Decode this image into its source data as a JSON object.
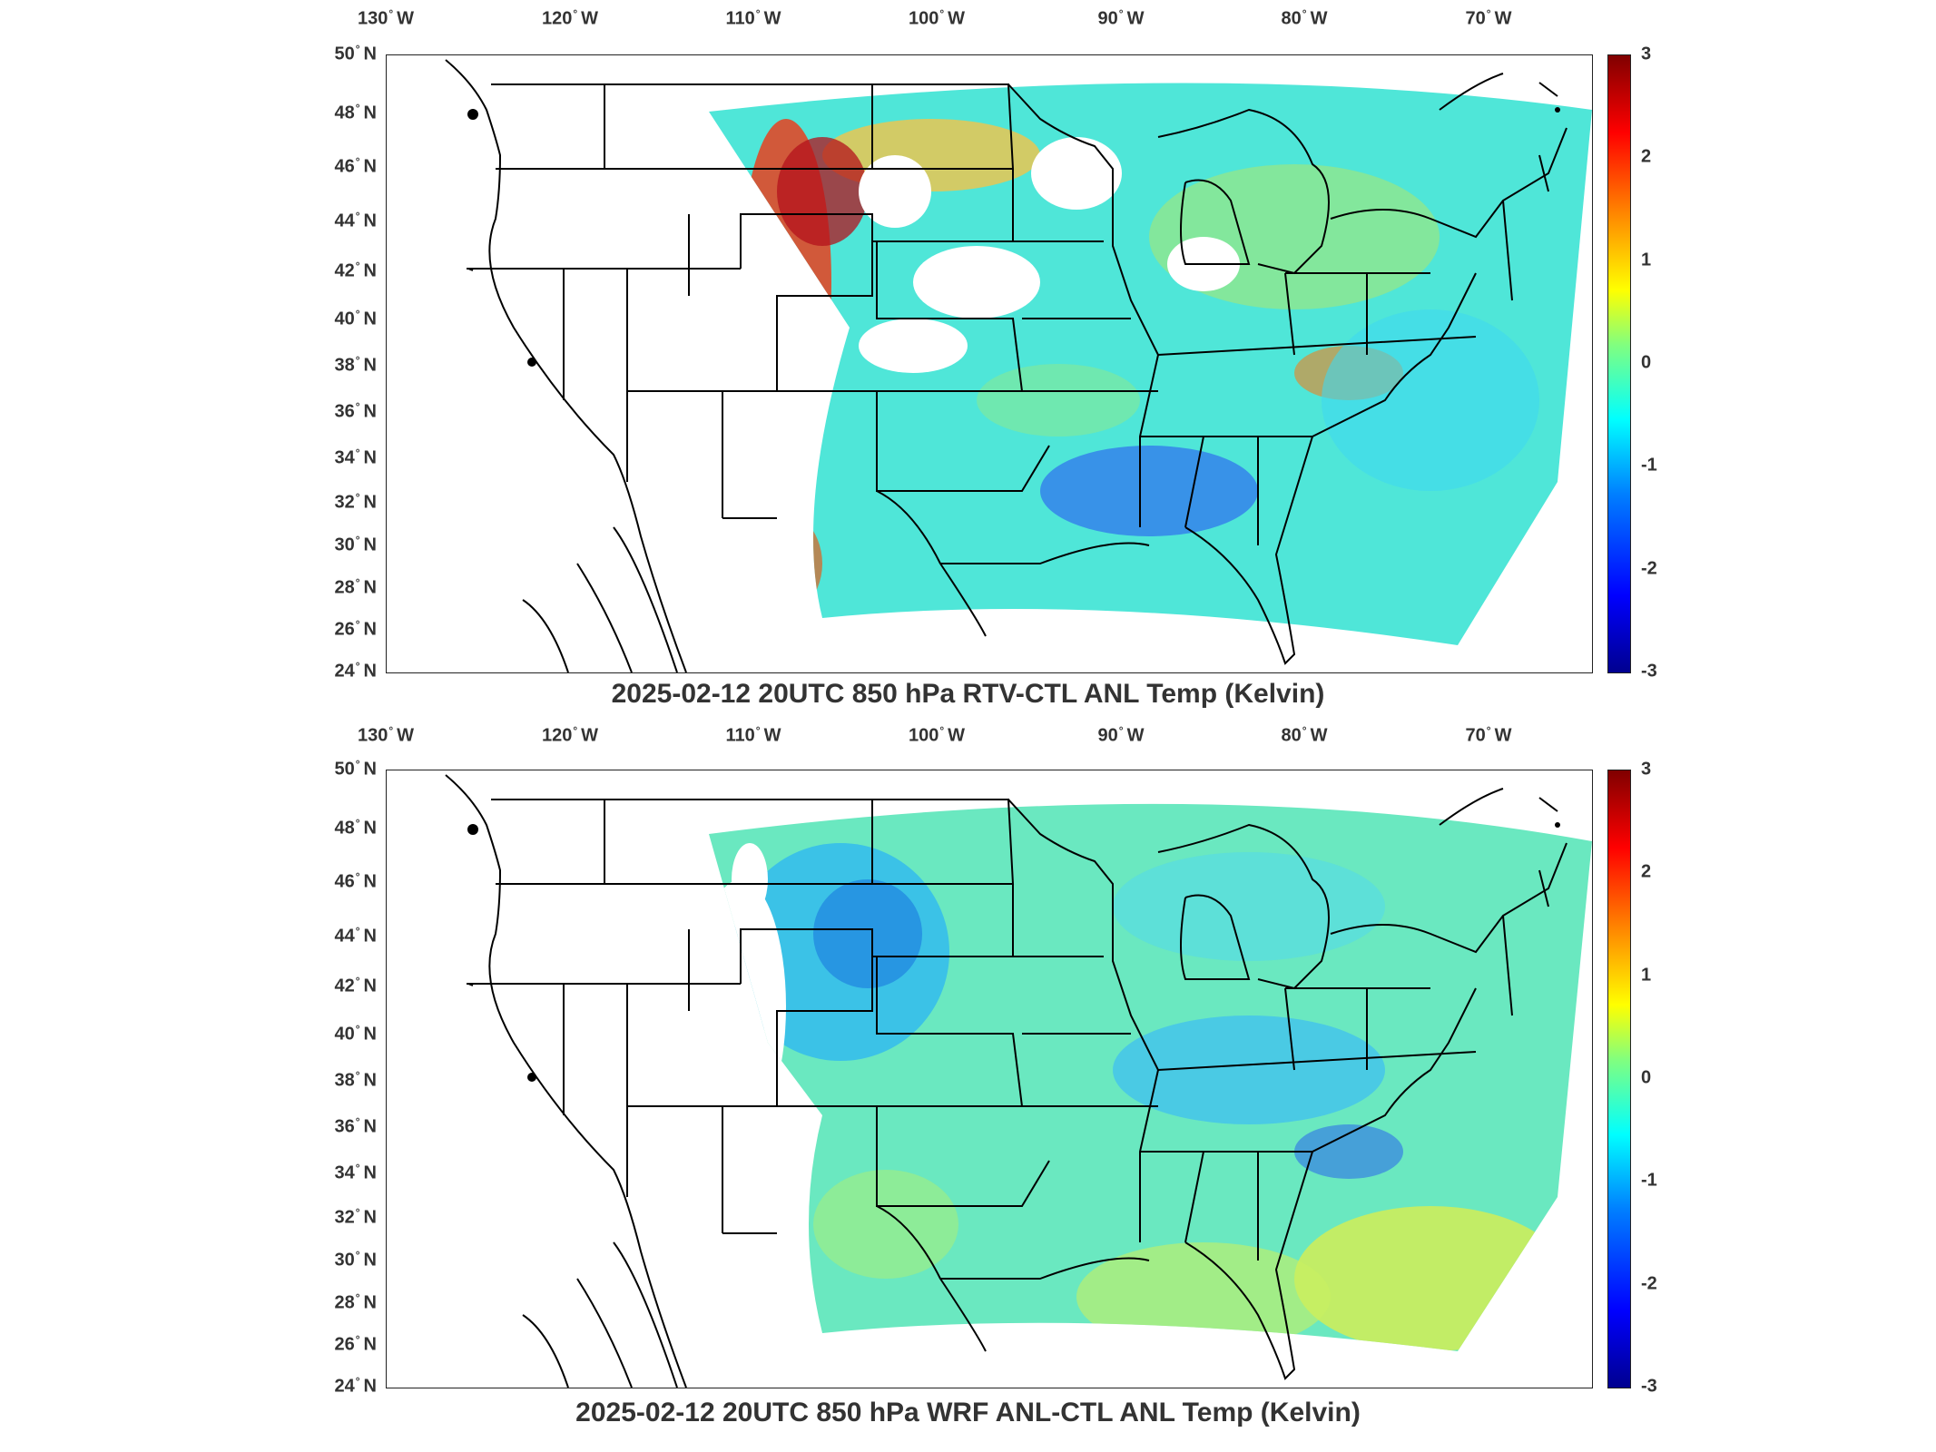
{
  "panels": [
    {
      "title": "2025-02-12 20UTC 850 hPa RTV-CTL ANL Temp (Kelvin)",
      "colormap": "jet",
      "field_character": "mostly cyan/green near 0 with red/orange positive patches along the Plains and Rockies front, blue negatives over the Southeast, white gaps where no data",
      "colorbar": {
        "min": -3,
        "max": 3,
        "ticks": [
          "3",
          "2",
          "1",
          "0",
          "-1",
          "-2",
          "-3"
        ]
      }
    },
    {
      "title": "2025-02-12 20UTC 850 hPa WRF ANL-CTL ANL Temp (Kelvin)",
      "colormap": "jet",
      "field_character": "mostly cyan/green near 0, blue negatives over the northern Plains and Tennessee/Carolinas, yellow positives over the Gulf and western Atlantic",
      "colorbar": {
        "min": -3,
        "max": 3,
        "ticks": [
          "3",
          "2",
          "1",
          "0",
          "-1",
          "-2",
          "-3"
        ]
      }
    }
  ],
  "axes": {
    "lon_ticks": [
      {
        "deg": "130",
        "hemi": "W"
      },
      {
        "deg": "120",
        "hemi": "W"
      },
      {
        "deg": "110",
        "hemi": "W"
      },
      {
        "deg": "100",
        "hemi": "W"
      },
      {
        "deg": "90",
        "hemi": "W"
      },
      {
        "deg": "80",
        "hemi": "W"
      },
      {
        "deg": "70",
        "hemi": "W"
      }
    ],
    "lat_ticks": [
      {
        "deg": "50",
        "hemi": "N"
      },
      {
        "deg": "48",
        "hemi": "N"
      },
      {
        "deg": "46",
        "hemi": "N"
      },
      {
        "deg": "44",
        "hemi": "N"
      },
      {
        "deg": "42",
        "hemi": "N"
      },
      {
        "deg": "40",
        "hemi": "N"
      },
      {
        "deg": "38",
        "hemi": "N"
      },
      {
        "deg": "36",
        "hemi": "N"
      },
      {
        "deg": "34",
        "hemi": "N"
      },
      {
        "deg": "32",
        "hemi": "N"
      },
      {
        "deg": "30",
        "hemi": "N"
      },
      {
        "deg": "28",
        "hemi": "N"
      },
      {
        "deg": "26",
        "hemi": "N"
      },
      {
        "deg": "24",
        "hemi": "N"
      }
    ]
  },
  "colors": {
    "outline": "#000000",
    "background": "#ffffff",
    "text": "#333333"
  }
}
